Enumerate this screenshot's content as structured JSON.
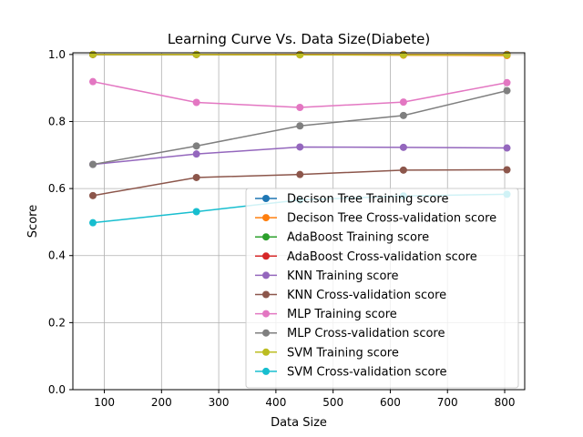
{
  "chart_data": {
    "type": "line",
    "title": "Learning Curve Vs. Data Size(Diabete)",
    "xlabel": "Data Size",
    "ylabel": "Score",
    "xlim": [
      45,
      835
    ],
    "ylim": [
      0.0,
      1.005
    ],
    "xticks": [
      100,
      200,
      300,
      400,
      500,
      600,
      700,
      800
    ],
    "yticks": [
      0.0,
      0.2,
      0.4,
      0.6,
      0.8,
      1.0
    ],
    "xtick_labels": [
      "100",
      "200",
      "300",
      "400",
      "500",
      "600",
      "700",
      "800"
    ],
    "ytick_labels": [
      "0.0",
      "0.2",
      "0.4",
      "0.6",
      "0.8",
      "1.0"
    ],
    "grid": true,
    "legend_position": "lower-right",
    "x": [
      80,
      261,
      442,
      623,
      804
    ],
    "series": [
      {
        "name": "Decison Tree Training score",
        "color": "#1f77b4",
        "values": [
          1.0,
          1.0,
          1.0,
          1.0,
          1.0
        ]
      },
      {
        "name": "Decison Tree Cross-validation score",
        "color": "#ff7f0e",
        "values": [
          1.0,
          1.0,
          0.999,
          0.998,
          0.997
        ]
      },
      {
        "name": "AdaBoost Training score",
        "color": "#2ca02c",
        "values": [
          1.0,
          1.0,
          1.0,
          1.0,
          1.0
        ]
      },
      {
        "name": "AdaBoost Cross-validation score",
        "color": "#d62728",
        "values": [
          1.0,
          1.0,
          1.0,
          1.0,
          1.0
        ]
      },
      {
        "name": "KNN Training score",
        "color": "#9467bd",
        "values": [
          0.672,
          0.703,
          0.724,
          0.723,
          0.721
        ]
      },
      {
        "name": "KNN Cross-validation score",
        "color": "#8c564b",
        "values": [
          0.579,
          0.633,
          0.642,
          0.655,
          0.656
        ]
      },
      {
        "name": "MLP Training score",
        "color": "#e377c2",
        "values": [
          0.919,
          0.857,
          0.842,
          0.858,
          0.916
        ]
      },
      {
        "name": "MLP Cross-validation score",
        "color": "#7f7f7f",
        "values": [
          0.672,
          0.727,
          0.787,
          0.818,
          0.892
        ]
      },
      {
        "name": "SVM Training score",
        "color": "#bcbd22",
        "values": [
          1.0,
          1.0,
          0.999,
          0.999,
          0.999
        ]
      },
      {
        "name": "SVM Cross-validation score",
        "color": "#17becf",
        "values": [
          0.498,
          0.531,
          0.566,
          0.578,
          0.583
        ]
      }
    ]
  }
}
